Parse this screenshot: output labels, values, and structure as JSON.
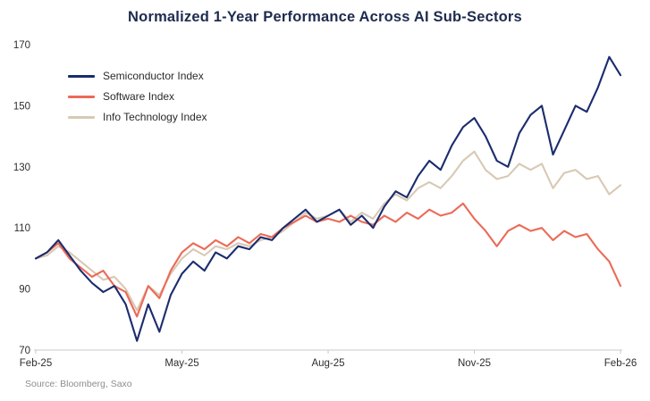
{
  "title": "Normalized 1-Year Performance Across AI Sub-Sectors",
  "source": "Source: Bloomberg, Saxo",
  "colors": {
    "semiconductor": "#1b2c6e",
    "software": "#eb6a57",
    "info_tech": "#d8c9b4",
    "title_text": "#1e2b4f",
    "axis_text": "#2e2e2e",
    "axis_line": "#c9c9c9",
    "source_text": "#8e8e8e",
    "background": "#ffffff"
  },
  "chart_data": {
    "type": "line",
    "title": "Normalized 1-Year Performance Across AI Sub-Sectors",
    "xlabel": "",
    "ylabel": "",
    "x_tick_labels": [
      "Feb-25",
      "May-25",
      "Aug-25",
      "Nov-25",
      "Feb-26"
    ],
    "x_range": [
      "Feb-25",
      "Feb-26"
    ],
    "y_ticks": [
      70,
      90,
      110,
      130,
      150,
      170
    ],
    "ylim": [
      70,
      170
    ],
    "grid": false,
    "legend_position": "upper-left",
    "series": [
      {
        "name": "Semiconductor Index",
        "color": "#1b2c6e",
        "values": [
          100,
          102,
          106,
          101,
          96,
          92,
          89,
          91,
          85,
          73,
          85,
          76,
          88,
          95,
          99,
          96,
          102,
          100,
          104,
          103,
          107,
          106,
          110,
          113,
          116,
          112,
          114,
          116,
          111,
          114,
          110,
          117,
          122,
          120,
          127,
          132,
          129,
          137,
          143,
          146,
          140,
          132,
          130,
          141,
          147,
          150,
          134,
          142,
          150,
          148,
          156,
          166,
          160
        ]
      },
      {
        "name": "Software Index",
        "color": "#eb6a57",
        "values": [
          100,
          102,
          105,
          100,
          97,
          94,
          96,
          91,
          89,
          81,
          91,
          87,
          96,
          102,
          105,
          103,
          106,
          104,
          107,
          105,
          108,
          107,
          110,
          112,
          114,
          112,
          113,
          112,
          114,
          112,
          111,
          114,
          112,
          115,
          113,
          116,
          114,
          115,
          118,
          113,
          109,
          104,
          109,
          111,
          109,
          110,
          106,
          109,
          107,
          108,
          103,
          99,
          91
        ]
      },
      {
        "name": "Info Technology Index",
        "color": "#d8c9b4",
        "values": [
          100,
          101,
          104,
          102,
          99,
          96,
          93,
          94,
          90,
          83,
          91,
          88,
          95,
          100,
          103,
          101,
          104,
          103,
          105,
          104,
          106,
          107,
          109,
          112,
          115,
          113,
          114,
          116,
          112,
          115,
          113,
          118,
          121,
          119,
          123,
          125,
          123,
          127,
          132,
          135,
          129,
          126,
          127,
          131,
          129,
          131,
          123,
          128,
          129,
          126,
          127,
          121,
          124
        ]
      }
    ]
  }
}
